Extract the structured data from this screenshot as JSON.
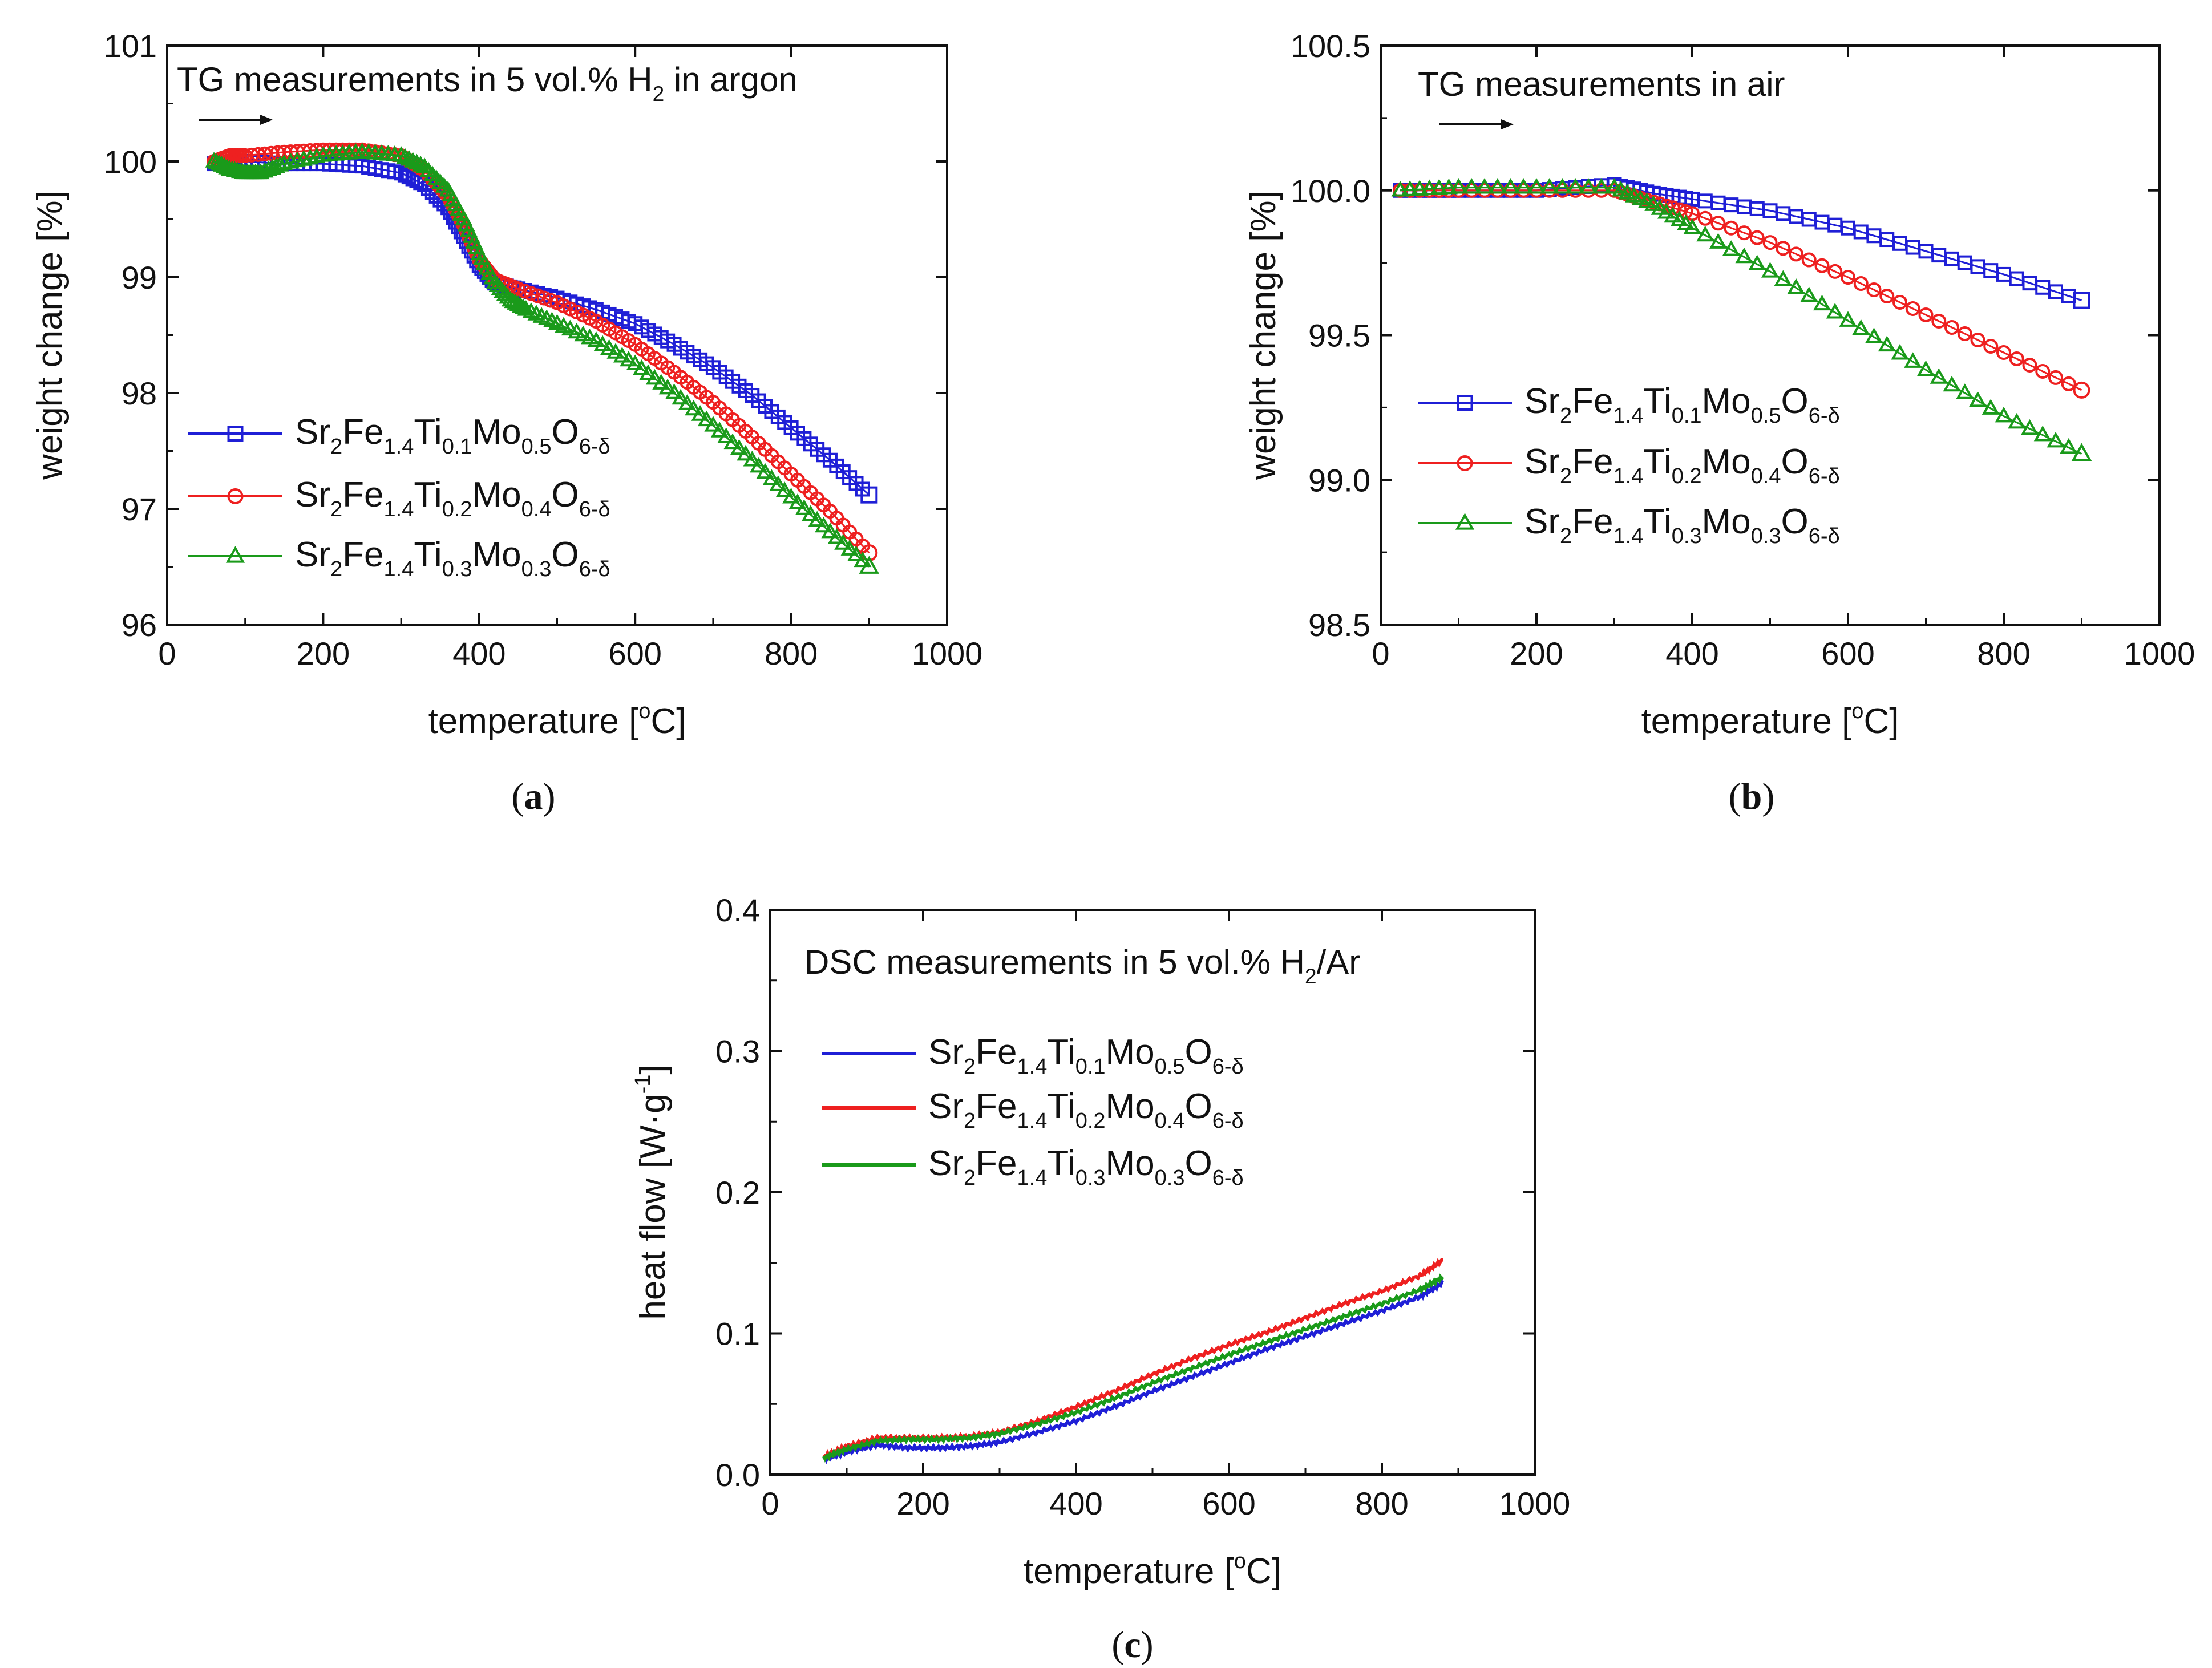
{
  "chart_data": [
    {
      "id": "a",
      "type": "scatter",
      "caption": "(a)",
      "title": "TG measurements in 5 vol.% H2 in argon",
      "title_runs": [
        {
          "text": "TG measurements in 5 vol.% H",
          "style": "normal"
        },
        {
          "text": "2",
          "style": "sub"
        },
        {
          "text": " in argon",
          "style": "normal"
        }
      ],
      "xlabel": "temperature [oC]",
      "xlabel_runs": [
        {
          "text": "temperature [",
          "style": "normal"
        },
        {
          "text": "o",
          "style": "sup"
        },
        {
          "text": "C]",
          "style": "normal"
        }
      ],
      "ylabel": "weight change [%]",
      "xlim": [
        0,
        1000
      ],
      "ylim": [
        96,
        101
      ],
      "xticks": [
        "0",
        "200",
        "400",
        "600",
        "800",
        "1000"
      ],
      "yticks": [
        "96",
        "97",
        "98",
        "99",
        "100",
        "101"
      ],
      "grid": false,
      "legend_position": "bottom-left",
      "series": [
        {
          "name": "Sr2Fe1.4Ti0.1Mo0.5O6-δ",
          "color": "#1f1fd6",
          "marker": "square",
          "x": [
            60,
            100,
            150,
            200,
            250,
            300,
            330,
            360,
            380,
            400,
            420,
            450,
            500,
            550,
            600,
            650,
            700,
            750,
            800,
            850,
            900
          ],
          "y": [
            99.98,
            100.0,
            99.98,
            99.98,
            99.96,
            99.9,
            99.8,
            99.6,
            99.35,
            99.1,
            98.95,
            98.9,
            98.82,
            98.72,
            98.6,
            98.42,
            98.22,
            97.98,
            97.7,
            97.42,
            97.12
          ]
        },
        {
          "name": "Sr2Fe1.4Ti0.2Mo0.4O6-δ",
          "color": "#ee2020",
          "marker": "circle",
          "x": [
            60,
            80,
            100,
            150,
            200,
            250,
            300,
            330,
            360,
            380,
            400,
            420,
            450,
            500,
            550,
            600,
            650,
            700,
            750,
            800,
            850,
            900
          ],
          "y": [
            100.0,
            100.05,
            100.05,
            100.08,
            100.1,
            100.1,
            100.05,
            99.92,
            99.7,
            99.45,
            99.15,
            98.98,
            98.9,
            98.78,
            98.62,
            98.42,
            98.18,
            97.92,
            97.62,
            97.3,
            96.98,
            96.62
          ]
        },
        {
          "name": "Sr2Fe1.4Ti0.3Mo0.3O6-δ",
          "color": "#1a9a1a",
          "marker": "triangle",
          "x": [
            60,
            80,
            100,
            120,
            150,
            200,
            250,
            300,
            330,
            360,
            380,
            400,
            420,
            440,
            460,
            500,
            550,
            600,
            650,
            700,
            750,
            800,
            850,
            900
          ],
          "y": [
            100.0,
            99.93,
            99.9,
            99.9,
            99.98,
            100.05,
            100.08,
            100.05,
            99.95,
            99.75,
            99.5,
            99.2,
            98.95,
            98.8,
            98.72,
            98.6,
            98.45,
            98.25,
            98.0,
            97.72,
            97.42,
            97.1,
            96.8,
            96.5
          ]
        }
      ]
    },
    {
      "id": "b",
      "type": "scatter",
      "caption": "(b)",
      "title": "TG measurements in air",
      "title_runs": [
        {
          "text": "TG measurements in air",
          "style": "normal"
        }
      ],
      "xlabel": "temperature [oC]",
      "xlabel_runs": [
        {
          "text": "temperature [",
          "style": "normal"
        },
        {
          "text": "o",
          "style": "sup"
        },
        {
          "text": "C]",
          "style": "normal"
        }
      ],
      "ylabel": "weight change [%]",
      "xlim": [
        0,
        1000
      ],
      "ylim": [
        98.5,
        100.5
      ],
      "xticks": [
        "0",
        "200",
        "400",
        "600",
        "800",
        "1000"
      ],
      "yticks": [
        "98.5",
        "99.0",
        "99.5",
        "100.0",
        "100.5"
      ],
      "grid": false,
      "legend_position": "center-left",
      "series": [
        {
          "name": "Sr2Fe1.4Ti0.1Mo0.5O6-δ",
          "color": "#1f1fd6",
          "marker": "square",
          "x": [
            25,
            100,
            200,
            300,
            350,
            400,
            500,
            600,
            700,
            800,
            900
          ],
          "y": [
            100.0,
            100.0,
            100.0,
            100.02,
            99.99,
            99.97,
            99.93,
            99.87,
            99.79,
            99.71,
            99.62
          ]
        },
        {
          "name": "Sr2Fe1.4Ti0.2Mo0.4O6-δ",
          "color": "#ee2020",
          "marker": "circle",
          "x": [
            25,
            100,
            200,
            300,
            350,
            400,
            500,
            600,
            700,
            800,
            900
          ],
          "y": [
            100.0,
            100.0,
            100.0,
            100.0,
            99.96,
            99.92,
            99.82,
            99.7,
            99.57,
            99.44,
            99.31
          ]
        },
        {
          "name": "Sr2Fe1.4Ti0.3Mo0.3O6-δ",
          "color": "#1a9a1a",
          "marker": "triangle",
          "x": [
            25,
            100,
            200,
            300,
            350,
            400,
            500,
            600,
            700,
            800,
            900
          ],
          "y": [
            100.0,
            100.01,
            100.01,
            100.01,
            99.95,
            99.87,
            99.72,
            99.55,
            99.38,
            99.22,
            99.09
          ]
        }
      ]
    },
    {
      "id": "c",
      "type": "line",
      "caption": "(c)",
      "title": "DSC measurements in 5 vol.% H2/Ar",
      "title_runs": [
        {
          "text": "DSC measurements in 5 vol.% H",
          "style": "normal"
        },
        {
          "text": "2",
          "style": "sub"
        },
        {
          "text": "/Ar",
          "style": "normal"
        }
      ],
      "xlabel": "temperature [oC]",
      "xlabel_runs": [
        {
          "text": "temperature [",
          "style": "normal"
        },
        {
          "text": "o",
          "style": "sup"
        },
        {
          "text": "C]",
          "style": "normal"
        }
      ],
      "ylabel": "heat flow [W·g-1]",
      "ylabel_runs": [
        {
          "text": "heat flow [W·g",
          "style": "normal"
        },
        {
          "text": "-1",
          "style": "sup"
        },
        {
          "text": "]",
          "style": "normal"
        }
      ],
      "xlim": [
        0,
        1000
      ],
      "ylim": [
        0.0,
        0.4
      ],
      "xticks": [
        "0",
        "200",
        "400",
        "600",
        "800",
        "1000"
      ],
      "yticks": [
        "0.0",
        "0.1",
        "0.2",
        "0.3",
        "0.4"
      ],
      "grid": false,
      "legend_position": "top-left",
      "series": [
        {
          "name": "Sr2Fe1.4Ti0.1Mo0.5O6-δ",
          "color": "#1f1fd6",
          "marker": "none",
          "x": [
            70,
            100,
            140,
            180,
            220,
            260,
            300,
            350,
            400,
            450,
            500,
            550,
            600,
            650,
            700,
            750,
            800,
            850,
            880
          ],
          "y": [
            0.011,
            0.016,
            0.021,
            0.019,
            0.019,
            0.02,
            0.023,
            0.03,
            0.038,
            0.048,
            0.059,
            0.069,
            0.079,
            0.089,
            0.098,
            0.107,
            0.116,
            0.126,
            0.136
          ]
        },
        {
          "name": "Sr2Fe1.4Ti0.2Mo0.4O6-δ",
          "color": "#ee2020",
          "marker": "none",
          "x": [
            70,
            100,
            140,
            180,
            220,
            260,
            300,
            350,
            400,
            450,
            500,
            550,
            600,
            650,
            700,
            750,
            800,
            850,
            880
          ],
          "y": [
            0.013,
            0.02,
            0.026,
            0.026,
            0.026,
            0.027,
            0.03,
            0.038,
            0.048,
            0.059,
            0.071,
            0.082,
            0.092,
            0.101,
            0.111,
            0.121,
            0.13,
            0.141,
            0.152
          ]
        },
        {
          "name": "Sr2Fe1.4Ti0.3Mo0.3O6-δ",
          "color": "#1a9a1a",
          "marker": "none",
          "x": [
            70,
            100,
            140,
            180,
            220,
            260,
            300,
            350,
            400,
            450,
            500,
            550,
            600,
            650,
            700,
            750,
            800,
            850,
            880
          ],
          "y": [
            0.012,
            0.018,
            0.024,
            0.025,
            0.025,
            0.026,
            0.029,
            0.036,
            0.044,
            0.054,
            0.065,
            0.075,
            0.085,
            0.094,
            0.103,
            0.112,
            0.121,
            0.131,
            0.14
          ]
        }
      ]
    }
  ],
  "legend_name_runs": [
    [
      {
        "text": "Sr",
        "style": "normal"
      },
      {
        "text": "2",
        "style": "sub"
      },
      {
        "text": "Fe",
        "style": "normal"
      },
      {
        "text": "1.4",
        "style": "sub"
      },
      {
        "text": "Ti",
        "style": "normal"
      },
      {
        "text": "0.1",
        "style": "sub"
      },
      {
        "text": "Mo",
        "style": "normal"
      },
      {
        "text": "0.5",
        "style": "sub"
      },
      {
        "text": "O",
        "style": "normal"
      },
      {
        "text": "6-δ",
        "style": "sub"
      }
    ],
    [
      {
        "text": "Sr",
        "style": "normal"
      },
      {
        "text": "2",
        "style": "sub"
      },
      {
        "text": "Fe",
        "style": "normal"
      },
      {
        "text": "1.4",
        "style": "sub"
      },
      {
        "text": "Ti",
        "style": "normal"
      },
      {
        "text": "0.2",
        "style": "sub"
      },
      {
        "text": "Mo",
        "style": "normal"
      },
      {
        "text": "0.4",
        "style": "sub"
      },
      {
        "text": "O",
        "style": "normal"
      },
      {
        "text": "6-δ",
        "style": "sub"
      }
    ],
    [
      {
        "text": "Sr",
        "style": "normal"
      },
      {
        "text": "2",
        "style": "sub"
      },
      {
        "text": "Fe",
        "style": "normal"
      },
      {
        "text": "1.4",
        "style": "sub"
      },
      {
        "text": "Ti",
        "style": "normal"
      },
      {
        "text": "0.3",
        "style": "sub"
      },
      {
        "text": "Mo",
        "style": "normal"
      },
      {
        "text": "0.3",
        "style": "sub"
      },
      {
        "text": "O",
        "style": "normal"
      },
      {
        "text": "6-δ",
        "style": "sub"
      }
    ]
  ]
}
